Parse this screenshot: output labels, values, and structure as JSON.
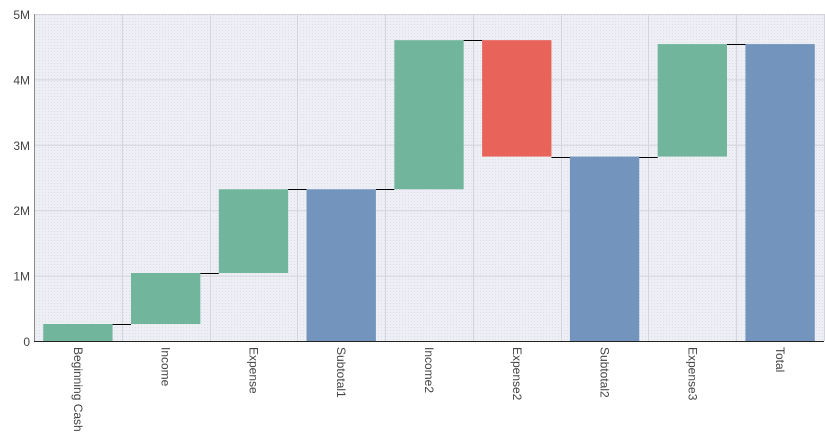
{
  "chart_data": {
    "type": "waterfall",
    "title": "",
    "xlabel": "",
    "ylabel": "",
    "ylim": [
      0,
      5000000
    ],
    "yticks": [
      0,
      1000000,
      2000000,
      3000000,
      4000000,
      5000000
    ],
    "ytick_labels": [
      "0",
      "1M",
      "2M",
      "3M",
      "4M",
      "5M"
    ],
    "grid": true,
    "legend": "none",
    "categories": [
      "Beginning Cash",
      "Income",
      "Expense",
      "Subtotal1",
      "Income2",
      "Expense2",
      "Subtotal2",
      "Expense3",
      "Total"
    ],
    "bars": [
      {
        "category": "Beginning Cash",
        "kind": "increase",
        "start": 0,
        "end": 260000
      },
      {
        "category": "Income",
        "kind": "increase",
        "start": 260000,
        "end": 1040000
      },
      {
        "category": "Expense",
        "kind": "increase",
        "start": 1040000,
        "end": 2320000
      },
      {
        "category": "Subtotal1",
        "kind": "total",
        "start": 0,
        "end": 2320000
      },
      {
        "category": "Income2",
        "kind": "increase",
        "start": 2320000,
        "end": 4600000
      },
      {
        "category": "Expense2",
        "kind": "decrease",
        "start": 4600000,
        "end": 2820000
      },
      {
        "category": "Subtotal2",
        "kind": "total",
        "start": 0,
        "end": 2820000
      },
      {
        "category": "Expense3",
        "kind": "increase",
        "start": 2820000,
        "end": 4540000
      },
      {
        "category": "Total",
        "kind": "total",
        "start": 0,
        "end": 4540000
      }
    ],
    "colors": {
      "increase": "#71b59c",
      "decrease": "#e8645a",
      "total": "#7294bd",
      "connector": "#000000",
      "grid": "#d4d4dc",
      "plot_background": "#eeeff5"
    }
  }
}
